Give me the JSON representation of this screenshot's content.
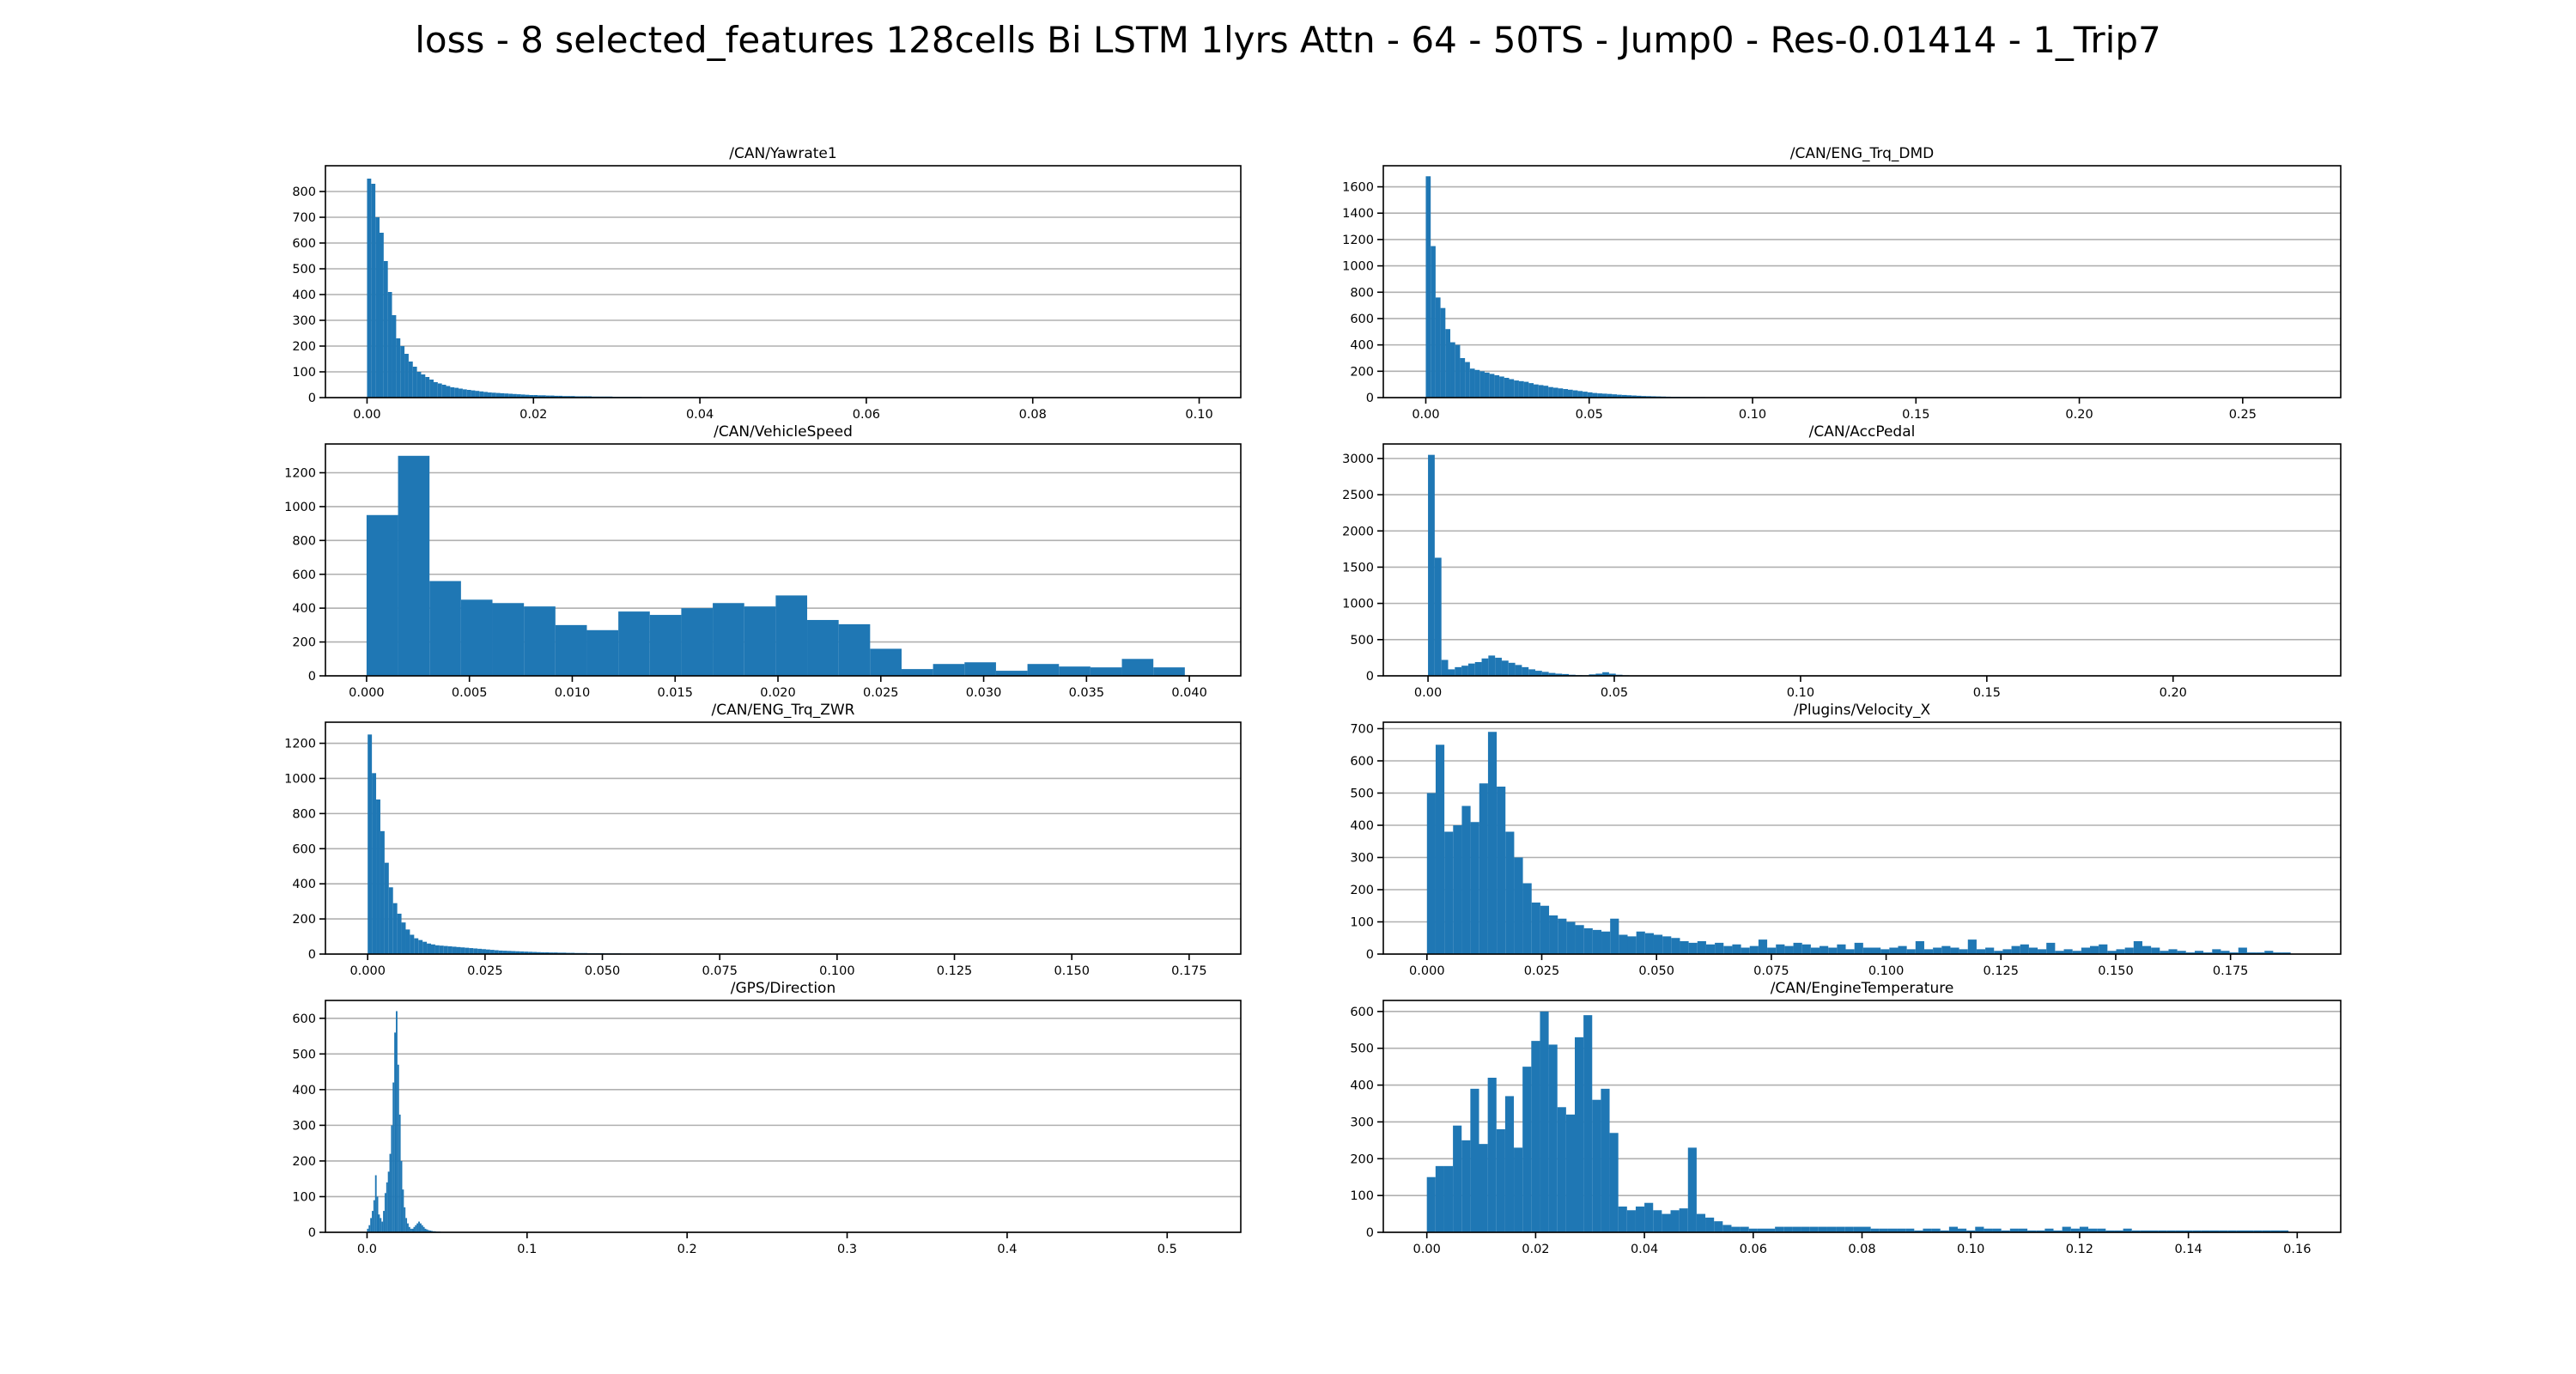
{
  "figure": {
    "suptitle": "loss - 8 selected_features 128cells Bi LSTM 1lyrs Attn - 64 - 50TS - Jump0 - Res-0.01414 - 1_Trip7",
    "bar_color": "#1f77b4"
  },
  "chart_data": [
    {
      "type": "bar",
      "title": "/CAN/Yawrate1",
      "xlim": [
        -0.005,
        0.105
      ],
      "ylim": [
        0,
        900
      ],
      "xticks": [
        0.0,
        0.02,
        0.04,
        0.06,
        0.08,
        0.1
      ],
      "xtick_labels": [
        "0.00",
        "0.02",
        "0.04",
        "0.06",
        "0.08",
        "0.10"
      ],
      "yticks": [
        0,
        100,
        200,
        300,
        400,
        500,
        600,
        700,
        800
      ],
      "ytick_labels": [
        "0",
        "100",
        "200",
        "300",
        "400",
        "500",
        "600",
        "700",
        "800"
      ],
      "grid": "y",
      "bin_start": 0.0,
      "bin_width": 0.0005,
      "values": [
        850,
        830,
        700,
        640,
        530,
        410,
        320,
        230,
        200,
        170,
        140,
        120,
        100,
        90,
        80,
        70,
        60,
        55,
        50,
        45,
        40,
        38,
        35,
        32,
        30,
        28,
        26,
        24,
        22,
        20,
        19,
        18,
        17,
        16,
        15,
        14,
        13,
        12,
        11,
        10,
        10,
        9,
        9,
        8,
        8,
        7,
        7,
        6,
        6,
        6,
        5,
        5,
        5,
        5,
        4,
        4,
        4,
        4,
        4,
        3,
        3,
        3,
        3,
        3,
        3,
        3,
        2,
        2,
        2,
        2,
        2,
        2,
        2,
        2,
        2,
        2,
        2,
        2,
        2,
        2,
        2,
        2,
        1,
        1,
        1,
        1,
        1,
        1,
        1,
        1,
        1,
        1,
        1,
        1,
        1,
        1,
        1,
        1,
        1,
        1,
        1,
        1,
        1,
        1,
        1,
        1,
        1,
        1,
        1,
        1,
        1,
        1,
        1,
        1,
        1,
        1,
        1,
        1,
        1,
        1,
        1,
        1,
        1,
        1,
        1,
        1,
        1,
        1,
        1,
        1
      ]
    },
    {
      "type": "bar",
      "title": "/CAN/ENG_Trq_DMD",
      "xlim": [
        -0.013,
        0.28
      ],
      "ylim": [
        0,
        1760
      ],
      "xticks": [
        0.0,
        0.05,
        0.1,
        0.15,
        0.2,
        0.25
      ],
      "xtick_labels": [
        "0.00",
        "0.05",
        "0.10",
        "0.15",
        "0.20",
        "0.25"
      ],
      "yticks": [
        0,
        200,
        400,
        600,
        800,
        1000,
        1200,
        1400,
        1600
      ],
      "ytick_labels": [
        "0",
        "200",
        "400",
        "600",
        "800",
        "1000",
        "1200",
        "1400",
        "1600"
      ],
      "grid": "y",
      "bin_start": 0.0,
      "bin_width": 0.0015,
      "values": [
        1680,
        1150,
        760,
        680,
        520,
        420,
        400,
        300,
        270,
        220,
        210,
        200,
        190,
        180,
        170,
        160,
        150,
        140,
        130,
        125,
        120,
        110,
        100,
        95,
        90,
        80,
        75,
        70,
        65,
        60,
        55,
        50,
        45,
        40,
        35,
        32,
        30,
        28,
        25,
        22,
        20,
        18,
        16,
        14,
        12,
        11,
        10,
        9,
        8,
        7,
        6,
        6,
        5,
        5,
        4,
        4,
        4,
        3,
        3,
        3,
        3,
        2,
        2,
        2,
        2,
        2,
        2,
        2,
        1,
        1,
        1,
        1,
        1,
        1,
        1,
        1,
        1,
        1,
        1,
        1,
        1,
        1,
        1,
        1,
        1,
        1,
        1,
        1,
        1,
        1,
        1,
        1,
        1,
        1,
        1,
        1,
        1,
        1,
        1,
        1,
        1,
        1,
        1,
        1,
        1,
        1,
        1,
        1,
        1,
        1,
        1,
        1,
        1,
        1,
        1,
        1,
        1,
        1,
        1,
        1,
        1,
        1,
        1,
        1,
        1,
        1,
        1,
        1,
        1,
        1,
        1,
        1,
        1,
        1,
        1,
        1,
        1,
        1,
        1,
        1,
        1,
        1,
        1,
        1,
        1,
        1,
        1,
        1,
        1,
        1,
        1,
        1,
        1,
        1,
        1,
        1,
        1,
        1,
        1,
        1,
        1,
        1,
        1,
        1,
        1,
        1,
        1,
        1,
        1,
        1,
        1,
        1,
        1,
        1,
        1,
        1,
        1,
        1,
        1
      ]
    },
    {
      "type": "bar",
      "title": "/CAN/VehicleSpeed",
      "xlim": [
        -0.002,
        0.0425
      ],
      "ylim": [
        0,
        1370
      ],
      "xticks": [
        0.0,
        0.005,
        0.01,
        0.015,
        0.02,
        0.025,
        0.03,
        0.035,
        0.04
      ],
      "xtick_labels": [
        "0.000",
        "0.005",
        "0.010",
        "0.015",
        "0.020",
        "0.025",
        "0.030",
        "0.035",
        "0.040"
      ],
      "yticks": [
        0,
        200,
        400,
        600,
        800,
        1000,
        1200
      ],
      "ytick_labels": [
        "0",
        "200",
        "400",
        "600",
        "800",
        "1000",
        "1200"
      ],
      "grid": "y",
      "bin_start": 0.0,
      "bin_width": 0.00153,
      "values": [
        950,
        1300,
        560,
        450,
        430,
        410,
        300,
        270,
        380,
        360,
        400,
        430,
        410,
        475,
        330,
        305,
        160,
        40,
        70,
        80,
        30,
        70,
        55,
        50,
        100,
        50
      ]
    },
    {
      "type": "bar",
      "title": "/CAN/AccPedal",
      "xlim": [
        -0.012,
        0.245
      ],
      "ylim": [
        0,
        3200
      ],
      "xticks": [
        0.0,
        0.05,
        0.1,
        0.15,
        0.2
      ],
      "xtick_labels": [
        "0.00",
        "0.05",
        "0.10",
        "0.15",
        "0.20"
      ],
      "yticks": [
        0,
        500,
        1000,
        1500,
        2000,
        2500,
        3000
      ],
      "ytick_labels": [
        "0",
        "500",
        "1000",
        "1500",
        "2000",
        "2500",
        "3000"
      ],
      "grid": "y",
      "bin_start": 0.0,
      "bin_width": 0.0018,
      "values": [
        3050,
        1630,
        220,
        90,
        120,
        140,
        170,
        190,
        240,
        280,
        250,
        210,
        180,
        150,
        120,
        90,
        70,
        55,
        40,
        30,
        25,
        15,
        10,
        8,
        20,
        30,
        50,
        30,
        15,
        8,
        5,
        3,
        2,
        2,
        1,
        1,
        1,
        1,
        1,
        1,
        1,
        1,
        1,
        1,
        1,
        1,
        1,
        1,
        1,
        1,
        1,
        1,
        1,
        1,
        1,
        1,
        1,
        1,
        1,
        1,
        1,
        1,
        1,
        1,
        1,
        1,
        1,
        1,
        1,
        1,
        1,
        1,
        1,
        1,
        1,
        1,
        1,
        1,
        1,
        1,
        1,
        1,
        1,
        1,
        1,
        1,
        1,
        1,
        1,
        1,
        1,
        1,
        1,
        1,
        1,
        1,
        1,
        1,
        1,
        1,
        1,
        1,
        1,
        1,
        1,
        1,
        1,
        1,
        1,
        1,
        1,
        1,
        1,
        1,
        1,
        1,
        1,
        1,
        1,
        1,
        1,
        1,
        1,
        1,
        1,
        1,
        1,
        1,
        1,
        1
      ]
    },
    {
      "type": "bar",
      "title": "/CAN/ENG_Trq_ZWR",
      "xlim": [
        -0.009,
        0.186
      ],
      "ylim": [
        0,
        1320
      ],
      "xticks": [
        0.0,
        0.025,
        0.05,
        0.075,
        0.1,
        0.125,
        0.15,
        0.175
      ],
      "xtick_labels": [
        "0.000",
        "0.025",
        "0.050",
        "0.075",
        "0.100",
        "0.125",
        "0.150",
        "0.175"
      ],
      "yticks": [
        0,
        200,
        400,
        600,
        800,
        1000,
        1200
      ],
      "ytick_labels": [
        "0",
        "200",
        "400",
        "600",
        "800",
        "1000",
        "1200"
      ],
      "grid": "y",
      "bin_start": 0.0,
      "bin_width": 0.0009,
      "values": [
        1250,
        1030,
        880,
        700,
        520,
        380,
        290,
        230,
        180,
        140,
        110,
        90,
        80,
        70,
        60,
        55,
        50,
        48,
        46,
        44,
        42,
        40,
        38,
        36,
        34,
        32,
        30,
        28,
        26,
        24,
        22,
        20,
        19,
        18,
        17,
        16,
        15,
        14,
        13,
        12,
        11,
        10,
        10,
        9,
        9,
        8,
        8,
        7,
        7,
        6,
        6,
        6,
        5,
        5,
        5,
        5,
        4,
        4,
        4,
        4,
        3,
        3,
        3,
        3,
        3,
        3,
        3,
        2,
        2,
        2,
        2,
        2,
        2,
        2,
        2,
        2,
        2,
        2,
        2,
        2,
        2,
        2,
        2,
        2,
        2,
        2,
        2,
        2,
        2,
        2,
        2,
        2,
        2,
        2,
        2,
        2,
        2,
        2,
        2,
        2,
        2,
        2,
        2,
        2,
        2,
        2,
        2,
        2,
        2,
        2,
        2,
        2,
        2,
        2,
        2,
        2,
        2,
        2,
        2,
        2,
        2,
        2,
        2,
        2,
        2,
        2,
        2,
        2,
        2,
        2,
        2,
        2,
        2,
        2,
        2,
        2,
        2,
        2,
        2,
        2,
        2,
        2,
        2,
        2,
        2,
        2,
        2,
        2,
        2,
        2,
        2,
        2,
        2,
        2,
        2,
        2,
        2,
        2,
        2,
        2,
        2,
        2,
        2,
        2,
        2,
        2,
        2,
        2,
        2,
        2,
        2,
        2,
        2,
        2,
        2,
        2,
        2,
        2,
        2,
        2,
        2,
        2,
        2,
        2,
        2,
        2,
        2,
        2,
        2,
        2,
        2,
        2,
        2,
        2,
        2,
        2,
        2,
        2,
        2
      ]
    },
    {
      "type": "bar",
      "title": "/Plugins/Velocity_X",
      "xlim": [
        -0.0095,
        0.199
      ],
      "ylim": [
        0,
        720
      ],
      "xticks": [
        0.0,
        0.025,
        0.05,
        0.075,
        0.1,
        0.125,
        0.15,
        0.175
      ],
      "xtick_labels": [
        "0.000",
        "0.025",
        "0.050",
        "0.075",
        "0.100",
        "0.125",
        "0.150",
        "0.175"
      ],
      "yticks": [
        0,
        100,
        200,
        300,
        400,
        500,
        600,
        700
      ],
      "ytick_labels": [
        "0",
        "100",
        "200",
        "300",
        "400",
        "500",
        "600",
        "700"
      ],
      "grid": "y",
      "bin_start": 0.0,
      "bin_width": 0.0019,
      "values": [
        500,
        650,
        380,
        400,
        460,
        410,
        530,
        690,
        520,
        380,
        300,
        220,
        160,
        150,
        120,
        110,
        100,
        90,
        80,
        75,
        70,
        110,
        60,
        55,
        70,
        65,
        60,
        55,
        50,
        40,
        35,
        40,
        30,
        35,
        25,
        30,
        20,
        25,
        45,
        20,
        30,
        25,
        35,
        30,
        20,
        25,
        20,
        30,
        15,
        35,
        20,
        20,
        15,
        20,
        25,
        15,
        40,
        15,
        20,
        25,
        20,
        15,
        45,
        15,
        20,
        10,
        15,
        25,
        30,
        20,
        15,
        35,
        10,
        15,
        10,
        20,
        25,
        30,
        10,
        15,
        20,
        40,
        25,
        20,
        10,
        15,
        10,
        5,
        10,
        5,
        15,
        10,
        5,
        20,
        5,
        5,
        10,
        5,
        5
      ]
    },
    {
      "type": "bar",
      "title": "/GPS/Direction",
      "xlim": [
        -0.026,
        0.546
      ],
      "ylim": [
        0,
        650
      ],
      "xticks": [
        0.0,
        0.1,
        0.2,
        0.3,
        0.4,
        0.5
      ],
      "xtick_labels": [
        "0.0",
        "0.1",
        "0.2",
        "0.3",
        "0.4",
        "0.5"
      ],
      "yticks": [
        0,
        100,
        200,
        300,
        400,
        500,
        600
      ],
      "ytick_labels": [
        "0",
        "100",
        "200",
        "300",
        "400",
        "500",
        "600"
      ],
      "grid": "y",
      "bin_start": 0.0,
      "bin_width": 0.001,
      "values": [
        10,
        20,
        40,
        60,
        90,
        160,
        100,
        50,
        40,
        30,
        60,
        110,
        140,
        170,
        220,
        300,
        420,
        560,
        620,
        470,
        330,
        200,
        120,
        70,
        40,
        25,
        15,
        10,
        10,
        15,
        20,
        25,
        30,
        25,
        20,
        15,
        10,
        8,
        6,
        5,
        4,
        3,
        3,
        2,
        2,
        2,
        1,
        1,
        1,
        1,
        1,
        1,
        1,
        1,
        1,
        1,
        1,
        1,
        1,
        1
      ]
    },
    {
      "type": "bar",
      "title": "/CAN/EngineTemperature",
      "xlim": [
        -0.008,
        0.168
      ],
      "ylim": [
        0,
        630
      ],
      "xticks": [
        0.0,
        0.02,
        0.04,
        0.06,
        0.08,
        0.1,
        0.12,
        0.14,
        0.16
      ],
      "xtick_labels": [
        "0.00",
        "0.02",
        "0.04",
        "0.06",
        "0.08",
        "0.10",
        "0.12",
        "0.14",
        "0.16"
      ],
      "yticks": [
        0,
        100,
        200,
        300,
        400,
        500,
        600
      ],
      "ytick_labels": [
        "0",
        "100",
        "200",
        "300",
        "400",
        "500",
        "600"
      ],
      "grid": "y",
      "bin_start": 0.0,
      "bin_width": 0.0016,
      "values": [
        150,
        180,
        180,
        290,
        250,
        390,
        240,
        420,
        280,
        370,
        230,
        450,
        520,
        600,
        510,
        340,
        320,
        530,
        590,
        360,
        390,
        270,
        70,
        60,
        70,
        80,
        60,
        50,
        60,
        65,
        230,
        50,
        40,
        30,
        20,
        15,
        15,
        10,
        10,
        10,
        15,
        15,
        15,
        15,
        15,
        15,
        15,
        15,
        15,
        15,
        15,
        10,
        10,
        10,
        10,
        10,
        5,
        10,
        10,
        5,
        15,
        10,
        5,
        15,
        10,
        10,
        5,
        10,
        10,
        5,
        5,
        10,
        5,
        15,
        10,
        15,
        10,
        10,
        5,
        5,
        10,
        5,
        5,
        5,
        5,
        5,
        5,
        5,
        5,
        5,
        5,
        5,
        5,
        5,
        5,
        5,
        5,
        5,
        5
      ]
    }
  ]
}
